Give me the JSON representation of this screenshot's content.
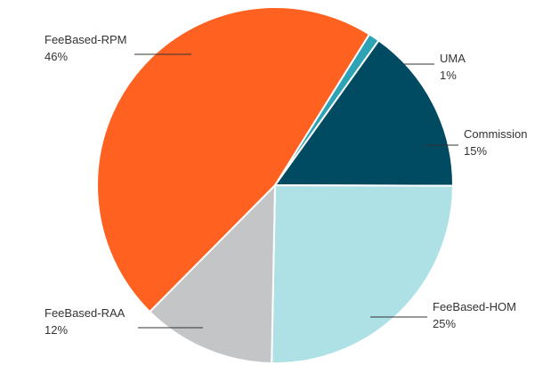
{
  "chart_data": {
    "type": "pie",
    "slices": [
      {
        "name": "UMA",
        "value": 1,
        "label": "1%",
        "color": "#2ea3b5"
      },
      {
        "name": "Commission",
        "value": 15,
        "label": "15%",
        "color": "#004a62"
      },
      {
        "name": "FeeBased-HOM",
        "value": 25,
        "label": "25%",
        "color": "#ade1e6"
      },
      {
        "name": "FeeBased-RAA",
        "value": 12,
        "label": "12%",
        "color": "#c4c5c7"
      },
      {
        "name": "FeeBased-RPM",
        "value": 46,
        "label": "46%",
        "color": "#ff6120"
      }
    ]
  }
}
